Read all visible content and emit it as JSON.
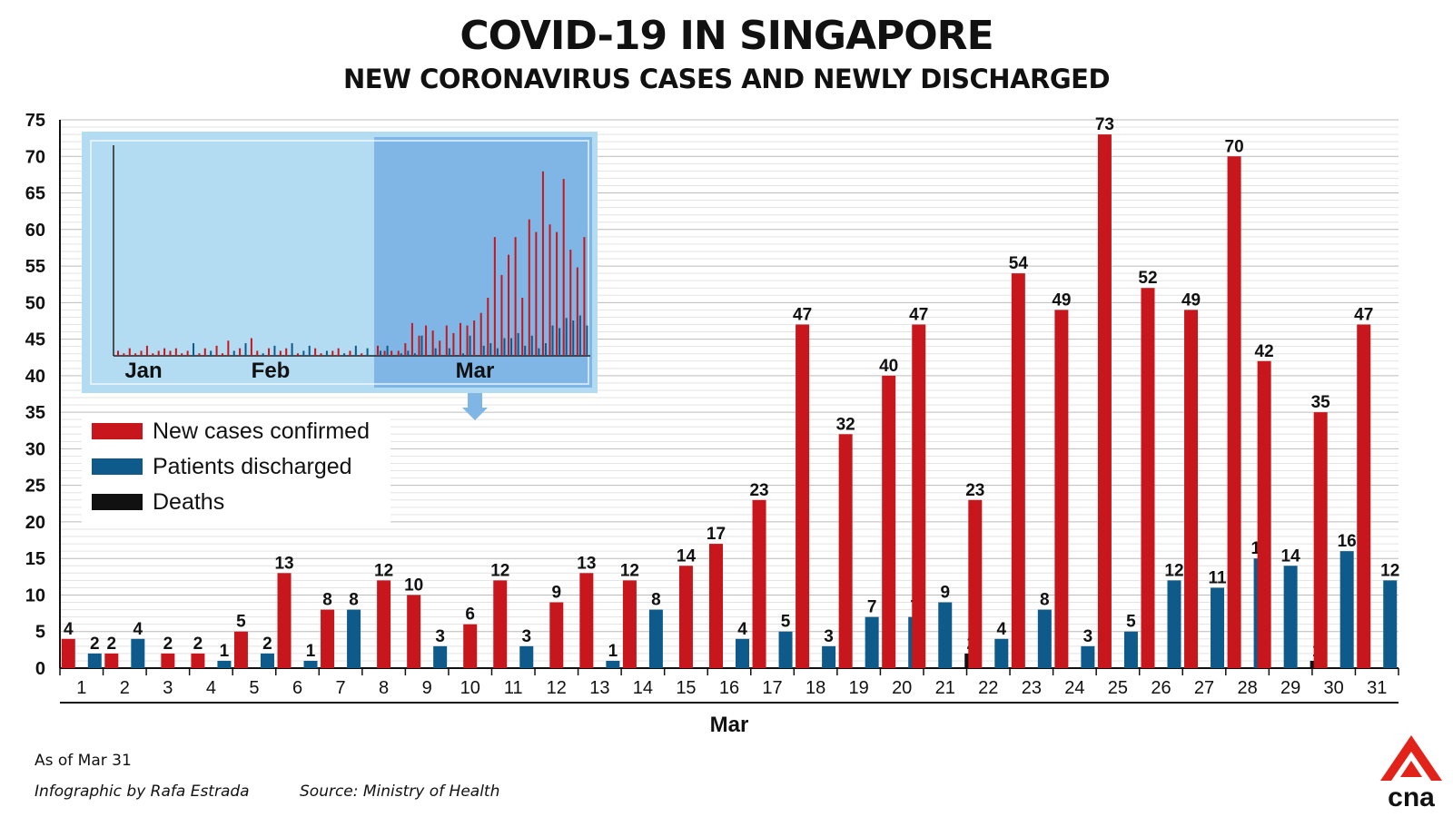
{
  "header": {
    "title": "COVID-19 IN SINGAPORE",
    "subtitle": "NEW CORONAVIRUS CASES AND NEWLY DISCHARGED"
  },
  "footer": {
    "as_of": "As of Mar 31",
    "credit": "Infographic by Rafa Estrada",
    "source": "Source: Ministry of Health",
    "logo_text": "cna"
  },
  "colors": {
    "new_cases": "#c8161d",
    "discharged": "#0e5a8a",
    "deaths": "#111111",
    "logo_red": "#e2231a",
    "inset_bg": "#b3dcf2",
    "inset_highlight": "#7fb6e6"
  },
  "inset": {
    "month_labels": [
      "Jan",
      "Feb",
      "Mar"
    ],
    "highlight": "Mar"
  },
  "chart_data": {
    "type": "bar",
    "xlabel": "Mar",
    "ylim": [
      0,
      75
    ],
    "yticks": [
      0,
      5,
      10,
      15,
      20,
      25,
      30,
      35,
      40,
      45,
      50,
      55,
      60,
      65,
      70,
      75
    ],
    "grid": true,
    "legend": "upper-left",
    "categories": [
      "1",
      "2",
      "3",
      "4",
      "5",
      "6",
      "7",
      "8",
      "9",
      "10",
      "11",
      "12",
      "13",
      "14",
      "15",
      "16",
      "17",
      "18",
      "19",
      "20",
      "21",
      "22",
      "23",
      "24",
      "25",
      "26",
      "27",
      "28",
      "29",
      "30",
      "31"
    ],
    "series": [
      {
        "name": "New cases confirmed",
        "color": "#c8161d",
        "values": [
          4,
          2,
          2,
          2,
          5,
          13,
          8,
          12,
          10,
          6,
          12,
          9,
          13,
          12,
          14,
          17,
          23,
          47,
          32,
          40,
          47,
          23,
          54,
          49,
          73,
          52,
          49,
          70,
          42,
          35,
          47
        ]
      },
      {
        "name": "Patients discharged",
        "color": "#0e5a8a",
        "values": [
          2,
          4,
          null,
          1,
          2,
          1,
          8,
          null,
          3,
          null,
          3,
          null,
          1,
          8,
          null,
          4,
          5,
          3,
          7,
          7,
          9,
          4,
          8,
          3,
          5,
          12,
          11,
          15,
          14,
          16,
          12
        ]
      },
      {
        "name": "Deaths",
        "color": "#111111",
        "values": [
          null,
          null,
          null,
          null,
          null,
          null,
          null,
          null,
          null,
          null,
          null,
          null,
          null,
          null,
          null,
          null,
          null,
          null,
          null,
          null,
          2,
          null,
          null,
          null,
          null,
          null,
          null,
          null,
          1,
          null,
          null
        ]
      }
    ]
  }
}
